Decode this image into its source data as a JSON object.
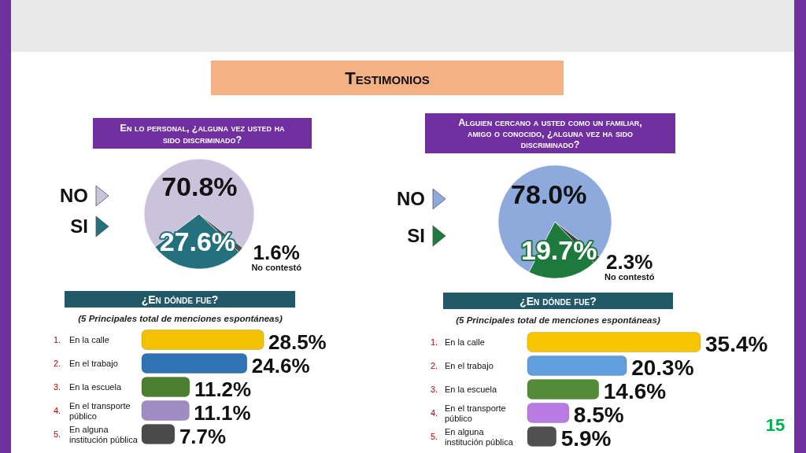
{
  "chart_data": [
    {
      "type": "other",
      "title": "Testimonios",
      "annotations": [
        "15"
      ]
    },
    {
      "type": "pie",
      "title": "En lo personal, ¿alguna vez usted ha sido discriminado?",
      "categories": [
        "NO",
        "SI",
        "No contestó"
      ],
      "values": [
        70.8,
        27.6,
        1.6
      ],
      "colors": [
        "#cbc3db",
        "#24707d",
        "#505050"
      ],
      "value_labels": [
        "70.8%",
        "27.6%",
        "1.6%"
      ],
      "legend": "left"
    },
    {
      "type": "pie",
      "title": "Alguien cercano a usted como un familiar, amigo o conocido, ¿alguna vez ha sido discriminado?",
      "categories": [
        "NO",
        "SI",
        "No contestó"
      ],
      "values": [
        78.0,
        19.7,
        2.3
      ],
      "colors": [
        "#8eaadc",
        "#1e7a3c",
        "#404040"
      ],
      "value_labels": [
        "78.0%",
        "19.7%",
        "2.3%"
      ],
      "legend": "left"
    },
    {
      "type": "bar",
      "orientation": "horizontal",
      "title": "¿En dónde fue?",
      "subtitle": "(5 Principales total de menciones espontáneas)",
      "categories": [
        "1. En la calle",
        "2. En el trabajo",
        "3. En la escuela",
        "4. En el transporte público",
        "5. En alguna institución pública"
      ],
      "values": [
        28.5,
        24.6,
        11.2,
        11.1,
        7.7
      ],
      "colors": [
        "#f2c100",
        "#2f73b5",
        "#4a7f30",
        "#a08cc4",
        "#4a4a4a"
      ],
      "value_labels": [
        "28.5%",
        "24.6%",
        "11.2%",
        "11.1%",
        "7.7%"
      ]
    },
    {
      "type": "bar",
      "orientation": "horizontal",
      "title": "¿En dónde fue?",
      "subtitle": "(5 Principales total de menciones espontáneas)",
      "categories": [
        "1. En la calle",
        "2. En el trabajo",
        "3. En la escuela",
        "4. En el transporte público",
        "5. En alguna institución pública"
      ],
      "values": [
        35.4,
        20.3,
        14.6,
        8.5,
        5.9
      ],
      "colors": [
        "#f7c600",
        "#5f9fe0",
        "#548b37",
        "#b87be3",
        "#505050"
      ],
      "value_labels": [
        "35.4%",
        "20.3%",
        "14.6%",
        "8.5%",
        "5.9%"
      ]
    }
  ]
}
